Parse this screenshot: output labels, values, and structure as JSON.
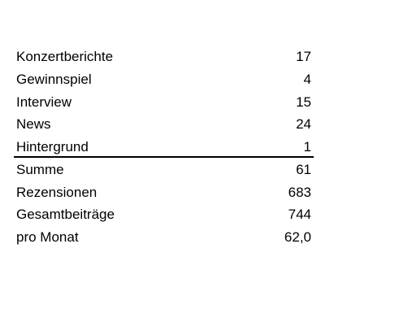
{
  "table": {
    "rows": [
      [
        "Konzertberichte",
        17
      ],
      [
        "Gewinnspiel",
        4
      ],
      [
        "Interview",
        15
      ],
      [
        "News",
        24
      ],
      [
        "Hintergrund",
        1
      ],
      [
        "Summe",
        61
      ],
      [
        "Rezensionen",
        683
      ],
      [
        "Gesamtbeiträge",
        744
      ],
      [
        "pro Monat",
        "62,0"
      ]
    ]
  }
}
